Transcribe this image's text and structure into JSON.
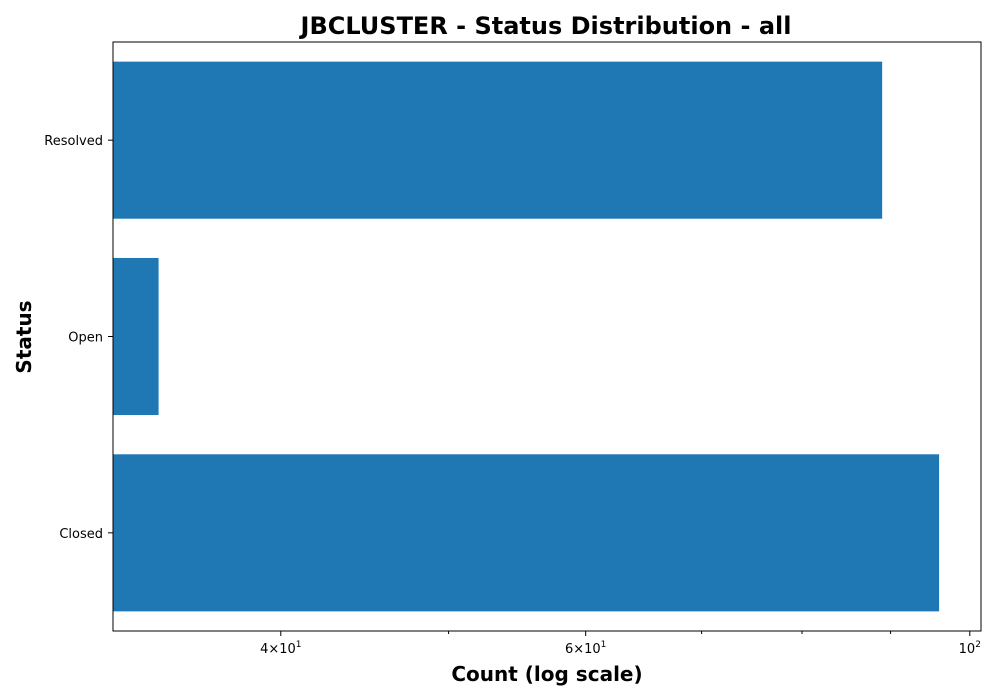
{
  "chart_data": {
    "type": "bar",
    "orientation": "horizontal",
    "title": "JBCLUSTER - Status Distribution - all",
    "xlabel": "Count (log scale)",
    "ylabel": "Status",
    "xscale": "log",
    "xlim": [
      32,
      101.5
    ],
    "categories": [
      "Resolved",
      "Open",
      "Closed"
    ],
    "values": [
      89,
      34,
      96
    ],
    "color": "#1f77b4",
    "grid": false,
    "legend": "none",
    "x_ticks": [
      {
        "value": 40,
        "base": "4×10",
        "exp": "1"
      },
      {
        "value": 60,
        "base": "6×10",
        "exp": "1"
      },
      {
        "value": 100,
        "base": "10",
        "exp": "2"
      }
    ],
    "x_minor_ticks": [
      50,
      70,
      80,
      90
    ]
  }
}
